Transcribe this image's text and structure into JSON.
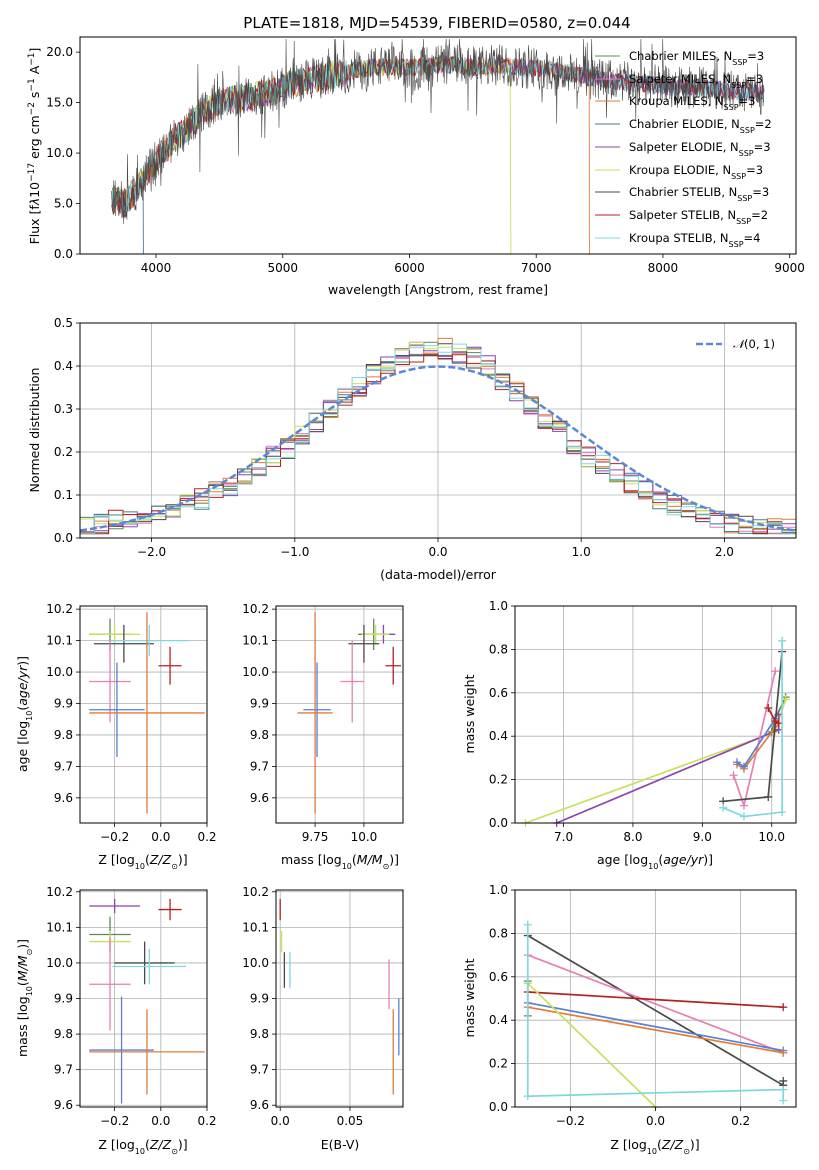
{
  "colors": {
    "Chabrier MILES": "#5b8a5b",
    "Salpeter MILES": "#e377c2",
    "Kroupa MILES": "#e07b39",
    "Chabrier ELODIE": "#4f7b8a",
    "Salpeter ELODIE": "#8e44ad",
    "Kroupa ELODIE": "#c8e05a",
    "Chabrier STELIB": "#4a4a4a",
    "Salpeter STELIB": "#b22222",
    "Kroupa STELIB": "#7fd8dc",
    "Blue model": "#5a7fd0",
    "Pink model": "#e67fb5",
    "Normal curve": "#5a87d6"
  },
  "chart_data": [
    {
      "type": "line",
      "title": "PLATE=1818, MJD=54539, FIBERID=0580, z=0.044",
      "xlabel": "wavelength [Angstrom, rest frame]",
      "ylabel": "Flux [f_λ10^-17 erg cm^-2 s^-1 A^-1]",
      "xlim": [
        3400,
        9050
      ],
      "ylim": [
        0,
        21.5
      ],
      "xticks": [
        4000,
        5000,
        6000,
        7000,
        8000,
        9000
      ],
      "yticks": [
        0,
        5,
        10,
        15,
        20
      ],
      "grid": false,
      "legend": "top-right",
      "legend_entries": [
        "Chabrier MILES, N_SSP=3",
        "Salpeter MILES, N_SSP=3",
        "Kroupa MILES, N_SSP=3",
        "Chabrier ELODIE, N_SSP=2",
        "Salpeter ELODIE, N_SSP=3",
        "Kroupa ELODIE, N_SSP=3",
        "Chabrier STELIB, N_SSP=3",
        "Salpeter STELIB, N_SSP=2",
        "Kroupa STELIB, N_SSP=4"
      ],
      "spectrum_envelope": {
        "x": [
          3650,
          3750,
          3850,
          3950,
          4050,
          4150,
          4250,
          4350,
          4500,
          4700,
          4900,
          5100,
          5300,
          5500,
          5700,
          5900,
          6100,
          6300,
          6500,
          6700,
          6900,
          7100,
          7300,
          7500,
          7700,
          7900,
          8100,
          8300,
          8500,
          8700,
          8800
        ],
        "y": [
          5.5,
          5.0,
          6.5,
          8.5,
          10.0,
          11.5,
          12.5,
          14.0,
          15.0,
          15.5,
          16.0,
          17.0,
          17.5,
          18.0,
          18.5,
          18.5,
          18.5,
          18.8,
          18.5,
          18.7,
          18.5,
          18.3,
          17.8,
          17.3,
          17.0,
          16.8,
          16.5,
          16.5,
          16.2,
          16.0,
          15.8
        ]
      },
      "model_cutoffs": {
        "Chabrier ELODIE": 3900,
        "Kroupa ELODIE": 6800,
        "Kroupa MILES": 7420
      }
    },
    {
      "type": "line",
      "xlabel": "(data-model)/error",
      "ylabel": "Normed distribution",
      "xlim": [
        -2.5,
        2.5
      ],
      "ylim": [
        0,
        0.5
      ],
      "xticks": [
        -2,
        -1,
        0,
        1,
        2
      ],
      "yticks": [
        0.0,
        0.1,
        0.2,
        0.3,
        0.4,
        0.5
      ],
      "grid": true,
      "legend": "top-right",
      "legend_entries": [
        "N(0,1)"
      ],
      "histogram_bin_width": 0.1,
      "histogram_bin_centers": [
        -2.45,
        -2.35,
        -2.25,
        -2.15,
        -2.05,
        -1.95,
        -1.85,
        -1.75,
        -1.65,
        -1.55,
        -1.45,
        -1.35,
        -1.25,
        -1.15,
        -1.05,
        -0.95,
        -0.85,
        -0.75,
        -0.65,
        -0.55,
        -0.45,
        -0.35,
        -0.25,
        -0.15,
        -0.05,
        0.05,
        0.15,
        0.25,
        0.35,
        0.45,
        0.55,
        0.65,
        0.75,
        0.85,
        0.95,
        1.05,
        1.15,
        1.25,
        1.35,
        1.45,
        1.55,
        1.65,
        1.75,
        1.85,
        1.95,
        2.05,
        2.15,
        2.25,
        2.35,
        2.45
      ],
      "histogram_values": [
        0.025,
        0.03,
        0.04,
        0.045,
        0.05,
        0.06,
        0.07,
        0.08,
        0.09,
        0.11,
        0.12,
        0.14,
        0.16,
        0.19,
        0.21,
        0.24,
        0.27,
        0.3,
        0.33,
        0.35,
        0.38,
        0.4,
        0.42,
        0.43,
        0.44,
        0.44,
        0.43,
        0.42,
        0.4,
        0.37,
        0.34,
        0.31,
        0.28,
        0.25,
        0.22,
        0.19,
        0.17,
        0.15,
        0.13,
        0.11,
        0.09,
        0.075,
        0.06,
        0.05,
        0.045,
        0.035,
        0.03,
        0.025,
        0.02,
        0.02
      ],
      "series": [
        {
          "name": "N(0,1)",
          "style": "dashed",
          "x": [
            -2.5,
            -2.0,
            -1.5,
            -1.0,
            -0.5,
            0.0,
            0.5,
            1.0,
            1.5,
            2.0,
            2.5
          ],
          "y": [
            0.018,
            0.054,
            0.13,
            0.242,
            0.352,
            0.399,
            0.352,
            0.242,
            0.13,
            0.054,
            0.018
          ]
        }
      ]
    },
    {
      "type": "scatter",
      "xlabel": "Z [log10(Z/Z⊙)]",
      "ylabel": "age [log10(age/yr)]",
      "xlim": [
        -0.35,
        0.2
      ],
      "ylim": [
        9.52,
        10.21
      ],
      "xticks": [
        -0.2,
        0.0,
        0.2
      ],
      "yticks": [
        9.6,
        9.7,
        9.8,
        9.9,
        10.0,
        10.1,
        10.2
      ],
      "grid": true,
      "errorbars": [
        {
          "model": "Chabrier MILES",
          "x": -0.22,
          "xerr": 0.09,
          "y": 10.12,
          "yerr": 0.05
        },
        {
          "model": "Kroupa ELODIE",
          "x": -0.2,
          "xerr": 0.11,
          "y": 10.12,
          "yerr": 0.03
        },
        {
          "model": "Chabrier STELIB",
          "x": -0.16,
          "xerr": 0.13,
          "y": 10.09,
          "yerr": 0.06
        },
        {
          "model": "Kroupa STELIB",
          "x": -0.05,
          "xerr": 0.17,
          "y": 10.1,
          "yerr": 0.05
        },
        {
          "model": "Salpeter STELIB",
          "x": 0.04,
          "xerr": 0.05,
          "y": 10.02,
          "yerr": 0.06
        },
        {
          "model": "Pink model",
          "x": -0.22,
          "xerr": 0.09,
          "y": 9.97,
          "yerr": 0.13
        },
        {
          "model": "Blue model",
          "x": -0.19,
          "xerr": 0.12,
          "y": 9.88,
          "yerr": 0.15
        },
        {
          "model": "Kroupa MILES",
          "x": -0.06,
          "xerr": 0.25,
          "y": 9.87,
          "yerr": 0.32
        }
      ]
    },
    {
      "type": "scatter",
      "xlabel": "mass [log10(M/M⊙)]",
      "ylabel": "",
      "xlim": [
        9.55,
        10.2
      ],
      "ylim": [
        9.52,
        10.21
      ],
      "xticks": [
        9.75,
        10.0
      ],
      "yticks": [
        9.6,
        9.7,
        9.8,
        9.9,
        10.0,
        10.1,
        10.2
      ],
      "grid": true,
      "errorbars": [
        {
          "model": "Chabrier MILES",
          "x": 10.05,
          "xerr": 0.08,
          "y": 10.12,
          "yerr": 0.05
        },
        {
          "model": "Salpeter ELODIE",
          "x": 10.1,
          "xerr": 0.06,
          "y": 10.12,
          "yerr": 0.03
        },
        {
          "model": "Kroupa ELODIE",
          "x": 10.06,
          "xerr": 0.07,
          "y": 10.12,
          "yerr": 0.03
        },
        {
          "model": "Chabrier STELIB",
          "x": 10.0,
          "xerr": 0.08,
          "y": 10.09,
          "yerr": 0.06
        },
        {
          "model": "Salpeter STELIB",
          "x": 10.15,
          "xerr": 0.04,
          "y": 10.02,
          "yerr": 0.06
        },
        {
          "model": "Pink model",
          "x": 9.94,
          "xerr": 0.06,
          "y": 9.97,
          "yerr": 0.13
        },
        {
          "model": "Blue model",
          "x": 9.76,
          "xerr": 0.07,
          "y": 9.88,
          "yerr": 0.15
        },
        {
          "model": "Kroupa MILES",
          "x": 9.75,
          "xerr": 0.09,
          "y": 9.87,
          "yerr": 0.32
        }
      ]
    },
    {
      "type": "line",
      "xlabel": "age [log10(age/yr)]",
      "ylabel": "mass weight",
      "xlim": [
        6.3,
        10.35
      ],
      "ylim": [
        0,
        1.0
      ],
      "xticks": [
        7,
        8,
        9,
        10
      ],
      "yticks": [
        0.0,
        0.2,
        0.4,
        0.6,
        0.8,
        1.0
      ],
      "grid": true,
      "series": [
        {
          "name": "Chabrier MILES",
          "x": [
            10.2,
            10.05,
            10.0
          ],
          "y": [
            0.58,
            0.48,
            0.42
          ]
        },
        {
          "name": "Kroupa ELODIE",
          "x": [
            6.45,
            10.05,
            10.2
          ],
          "y": [
            0.0,
            0.42,
            0.57
          ]
        },
        {
          "name": "Salpeter ELODIE",
          "x": [
            6.9,
            10.1,
            10.1
          ],
          "y": [
            0.0,
            0.43,
            0.5
          ]
        },
        {
          "name": "Pink model",
          "x": [
            9.45,
            9.6,
            10.05
          ],
          "y": [
            0.22,
            0.08,
            0.7
          ]
        },
        {
          "name": "Kroupa MILES",
          "x": [
            9.5,
            9.6,
            10.1
          ],
          "y": [
            0.27,
            0.25,
            0.46
          ]
        },
        {
          "name": "Blue model",
          "x": [
            9.5,
            9.6,
            10.05
          ],
          "y": [
            0.28,
            0.26,
            0.48
          ]
        },
        {
          "name": "Chabrier STELIB",
          "x": [
            9.3,
            9.95,
            10.15
          ],
          "y": [
            0.1,
            0.12,
            0.79
          ]
        },
        {
          "name": "Salpeter STELIB",
          "x": [
            9.95,
            10.05,
            10.1
          ],
          "y": [
            0.53,
            0.47,
            0.46
          ]
        },
        {
          "name": "Kroupa STELIB",
          "x": [
            9.3,
            9.6,
            10.15,
            10.15
          ],
          "y": [
            0.07,
            0.03,
            0.05,
            0.84
          ]
        }
      ]
    },
    {
      "type": "scatter",
      "xlabel": "Z [log10(Z/Z⊙)]",
      "ylabel": "mass [log10(M/M⊙)]",
      "xlim": [
        -0.35,
        0.2
      ],
      "ylim": [
        9.595,
        10.205
      ],
      "xticks": [
        -0.2,
        0.0,
        0.2
      ],
      "yticks": [
        9.6,
        9.7,
        9.8,
        9.9,
        10.0,
        10.1,
        10.2
      ],
      "grid": true,
      "errorbars": [
        {
          "model": "Salpeter ELODIE",
          "x": -0.2,
          "xerr": 0.11,
          "y": 10.16,
          "yerr": 0.02
        },
        {
          "model": "Salpeter STELIB",
          "x": 0.04,
          "xerr": 0.05,
          "y": 10.15,
          "yerr": 0.03
        },
        {
          "model": "Chabrier MILES",
          "x": -0.22,
          "xerr": 0.09,
          "y": 10.08,
          "yerr": 0.05
        },
        {
          "model": "Kroupa ELODIE",
          "x": -0.22,
          "xerr": 0.09,
          "y": 10.06,
          "yerr": 0.03
        },
        {
          "model": "Chabrier STELIB",
          "x": -0.07,
          "xerr": 0.13,
          "y": 10.0,
          "yerr": 0.06
        },
        {
          "model": "Kroupa STELIB",
          "x": -0.05,
          "xerr": 0.16,
          "y": 9.99,
          "yerr": 0.05
        },
        {
          "model": "Pink model",
          "x": -0.22,
          "xerr": 0.09,
          "y": 9.94,
          "yerr": 0.13
        },
        {
          "model": "Blue model",
          "x": -0.17,
          "xerr": 0.14,
          "y": 9.755,
          "yerr": 0.15
        },
        {
          "model": "Kroupa MILES",
          "x": -0.06,
          "xerr": 0.25,
          "y": 9.75,
          "yerr": 0.12
        }
      ]
    },
    {
      "type": "scatter",
      "xlabel": "E(B-V)",
      "ylabel": "",
      "xlim": [
        -0.003,
        0.088
      ],
      "ylim": [
        9.595,
        10.205
      ],
      "xticks": [
        0.0,
        0.05
      ],
      "yticks": [
        9.6,
        9.7,
        9.8,
        9.9,
        10.0,
        10.1,
        10.2
      ],
      "grid": true,
      "errorbars": [
        {
          "model": "Salpeter STELIB",
          "x": 0.0,
          "y": 10.15,
          "yerr": 0.03
        },
        {
          "model": "Kroupa ELODIE",
          "x": 0.001,
          "y": 10.06,
          "yerr": 0.03
        },
        {
          "model": "Chabrier STELIB",
          "x": 0.003,
          "y": 9.98,
          "yerr": 0.05
        },
        {
          "model": "Kroupa STELIB",
          "x": 0.007,
          "y": 9.98,
          "yerr": 0.05
        },
        {
          "model": "Pink model",
          "x": 0.078,
          "y": 9.94,
          "yerr": 0.07
        },
        {
          "model": "Kroupa MILES",
          "x": 0.081,
          "y": 9.75,
          "yerr": 0.12
        },
        {
          "model": "Blue model",
          "x": 0.085,
          "y": 9.82,
          "yerr": 0.08
        }
      ]
    },
    {
      "type": "line",
      "xlabel": "Z [log10(Z/Z⊙)]",
      "ylabel": "mass weight",
      "xlim": [
        -0.33,
        0.33
      ],
      "ylim": [
        0,
        1.0
      ],
      "xticks": [
        -0.2,
        0.0,
        0.2
      ],
      "yticks": [
        0.0,
        0.2,
        0.4,
        0.6,
        0.8,
        1.0
      ],
      "grid": true,
      "series": [
        {
          "name": "Chabrier STELIB",
          "x": [
            -0.3,
            0.3,
            0.3
          ],
          "y": [
            0.79,
            0.1,
            0.12
          ]
        },
        {
          "name": "Pink model",
          "x": [
            -0.3,
            0.3
          ],
          "y": [
            0.7,
            0.25
          ]
        },
        {
          "name": "Salpeter STELIB",
          "x": [
            -0.3,
            0.3
          ],
          "y": [
            0.53,
            0.46
          ]
        },
        {
          "name": "Blue model",
          "x": [
            -0.3,
            0.3
          ],
          "y": [
            0.48,
            0.26
          ]
        },
        {
          "name": "Kroupa MILES",
          "x": [
            -0.3,
            0.3
          ],
          "y": [
            0.46,
            0.25
          ]
        },
        {
          "name": "Kroupa ELODIE",
          "x": [
            -0.3,
            0.0
          ],
          "y": [
            0.57,
            0.0
          ]
        },
        {
          "name": "Chabrier MILES",
          "x": [
            -0.3,
            -0.3
          ],
          "y": [
            0.42,
            0.58
          ]
        },
        {
          "name": "Kroupa STELIB",
          "x": [
            -0.3,
            -0.3,
            0.3,
            0.3
          ],
          "y": [
            0.84,
            0.05,
            0.08,
            0.03
          ]
        }
      ]
    }
  ]
}
